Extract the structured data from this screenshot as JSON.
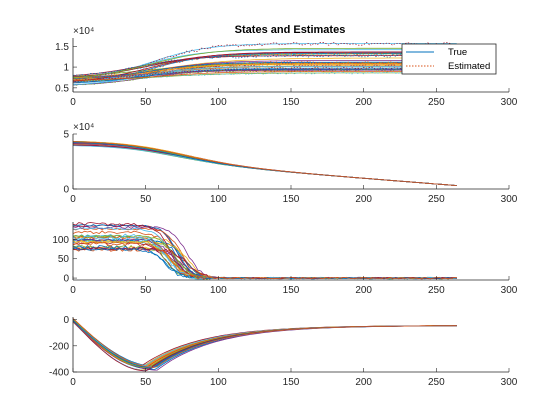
{
  "figure": {
    "title": "States and Estimates"
  },
  "legend": {
    "position": "top-right of first subplot",
    "entries": [
      {
        "label": "True",
        "style": "solid",
        "color": "#0072BD"
      },
      {
        "label": "Estimated",
        "style": "dotted",
        "color": "#D95319"
      }
    ]
  },
  "colors": {
    "palette": [
      "#0072BD",
      "#D95319",
      "#EDB120",
      "#7E2F8E",
      "#77AC30",
      "#4DBEEE",
      "#A2142F"
    ],
    "axis": "#262626"
  },
  "chart_data": [
    {
      "type": "line",
      "title": "States and Estimates",
      "xlim": [
        0,
        300
      ],
      "ylim": [
        4000,
        17000
      ],
      "xticks": [
        "0",
        "50",
        "100",
        "150",
        "200",
        "250",
        "300"
      ],
      "yticks": [
        "0.5",
        "1",
        "1.5"
      ],
      "y_exponent_label": "×10⁴",
      "trajectory_count": 30,
      "x_range_of_data": [
        0,
        265
      ],
      "series_summary": {
        "start_range": [
          4800,
          7500
        ],
        "plateau_range": [
          8500,
          16000
        ],
        "rise_end_x": 100
      },
      "series": [
        {
          "name": "True",
          "values": [
            7500,
            16000
          ]
        },
        {
          "name": "Estimated",
          "values": [
            7200,
            15500
          ]
        }
      ]
    },
    {
      "type": "line",
      "xlim": [
        0,
        300
      ],
      "ylim": [
        0,
        50000
      ],
      "xticks": [
        "0",
        "50",
        "100",
        "150",
        "200",
        "250",
        "300"
      ],
      "yticks": [
        "0",
        "5"
      ],
      "y_exponent_label": "×10⁴",
      "trajectory_count": 30,
      "series_summary": {
        "start_range": [
          40000,
          44000
        ],
        "end_value": 3000
      }
    },
    {
      "type": "line",
      "xlim": [
        0,
        300
      ],
      "ylim": [
        -5,
        145
      ],
      "xticks": [
        "0",
        "50",
        "100",
        "150",
        "200",
        "250",
        "300"
      ],
      "yticks": [
        "0",
        "50",
        "100"
      ],
      "trajectory_count": 30,
      "series_summary": {
        "start_range": [
          70,
          140
        ],
        "drop_center_x": 72,
        "end_value": 0
      }
    },
    {
      "type": "line",
      "xlim": [
        0,
        300
      ],
      "ylim": [
        -400,
        20
      ],
      "xticks": [
        "0",
        "50",
        "100",
        "150",
        "200",
        "250",
        "300"
      ],
      "yticks": [
        "0",
        "-200",
        "-400"
      ],
      "trajectory_count": 30,
      "series_summary": {
        "start_range": [
          -20,
          10
        ],
        "min_x": 52,
        "min_range": [
          -395,
          -345
        ],
        "end_value": -45
      }
    }
  ]
}
